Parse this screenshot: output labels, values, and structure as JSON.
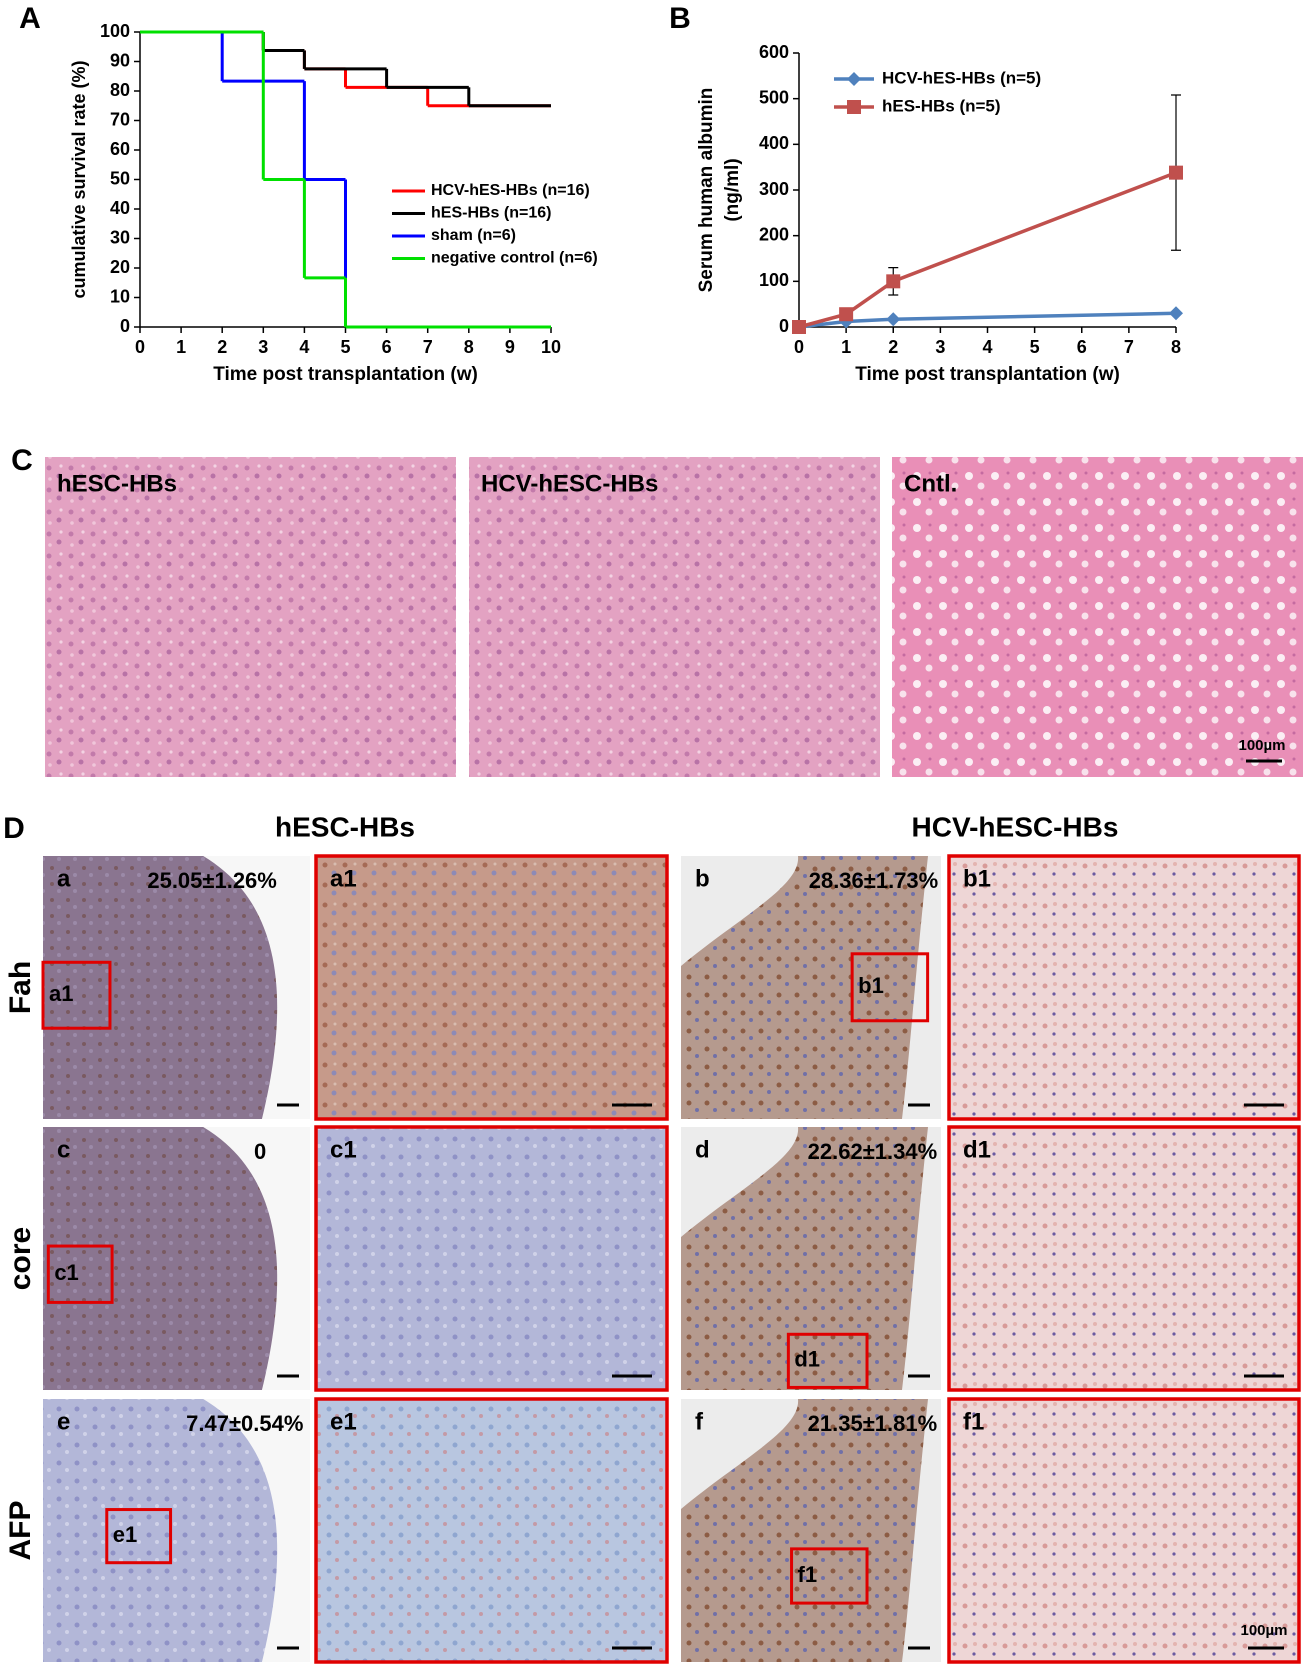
{
  "chart_data": [
    {
      "type": "step",
      "panel_label": "A",
      "x_label": "Time post transplantation (w)",
      "y_label": "cumulative survival rate (%)",
      "xlim": [
        0,
        10
      ],
      "xticks": [
        0,
        1,
        2,
        3,
        4,
        5,
        6,
        7,
        8,
        9,
        10
      ],
      "ylim": [
        0,
        100
      ],
      "yticks": [
        0,
        10,
        20,
        30,
        40,
        50,
        60,
        70,
        80,
        90,
        100
      ],
      "series": [
        {
          "name": "HCV-hES-HBs (n=16)",
          "color": "#ff0000",
          "x": [
            0,
            3,
            4,
            5,
            7,
            10
          ],
          "values": [
            100,
            93.75,
            87.5,
            81.25,
            75,
            75
          ]
        },
        {
          "name": "hES-HBs (n=16)",
          "color": "#000000",
          "x": [
            0,
            3,
            4,
            6,
            8,
            10
          ],
          "values": [
            100,
            93.75,
            87.5,
            81.25,
            75,
            75
          ]
        },
        {
          "name": "sham (n=6)",
          "color": "#0000ff",
          "x": [
            0,
            2,
            4,
            5
          ],
          "values": [
            100,
            83.33,
            50,
            0
          ]
        },
        {
          "name": "negative control (n=6)",
          "color": "#00e000",
          "x": [
            0,
            3,
            4,
            5,
            10
          ],
          "values": [
            100,
            50,
            16.67,
            0,
            0
          ]
        }
      ]
    },
    {
      "type": "line",
      "panel_label": "B",
      "x_label": "Time post transplantation (w)",
      "y_label": [
        "Serum human albumin",
        "(ng/ml)"
      ],
      "xlim": [
        0,
        8
      ],
      "xticks": [
        0,
        1,
        2,
        3,
        4,
        5,
        6,
        7,
        8
      ],
      "ylim": [
        0,
        600
      ],
      "yticks": [
        0,
        100,
        200,
        300,
        400,
        500,
        600
      ],
      "series": [
        {
          "name": "HCV-hES-HBs (n=5)",
          "color": "#4f81bd",
          "marker": "diamond",
          "x": [
            0,
            1,
            2,
            8
          ],
          "values": [
            0,
            12,
            17,
            30
          ]
        },
        {
          "name": "hES-HBs (n=5)",
          "color": "#c0504d",
          "marker": "square",
          "x": [
            0,
            1,
            2,
            8
          ],
          "values": [
            0,
            28,
            100,
            338
          ],
          "errors": [
            0,
            5,
            30,
            170
          ]
        }
      ]
    }
  ],
  "panel_c": {
    "label": "C",
    "images": [
      "hESC-HBs",
      "HCV-hESC-HBs",
      "Cntl."
    ],
    "scale_bar": "100µm"
  },
  "panel_d": {
    "label": "D",
    "columns": [
      "hESC-HBs",
      "HCV-hESC-HBs"
    ],
    "rows": [
      "Fah",
      "core",
      "AFP"
    ],
    "tiles": [
      [
        {
          "label": "a",
          "stat": "25.05±1.26%"
        },
        {
          "label": "a1"
        },
        {
          "label": "b",
          "stat": "28.36±1.73%"
        },
        {
          "label": "b1"
        }
      ],
      [
        {
          "label": "c",
          "stat": "0"
        },
        {
          "label": "c1"
        },
        {
          "label": "d",
          "stat": "22.62±1.34%"
        },
        {
          "label": "d1"
        }
      ],
      [
        {
          "label": "e",
          "stat": "7.47±0.54%"
        },
        {
          "label": "e1"
        },
        {
          "label": "f",
          "stat": "21.35±1.81%"
        },
        {
          "label": "f1"
        }
      ]
    ],
    "scale_bar": "100µm"
  }
}
